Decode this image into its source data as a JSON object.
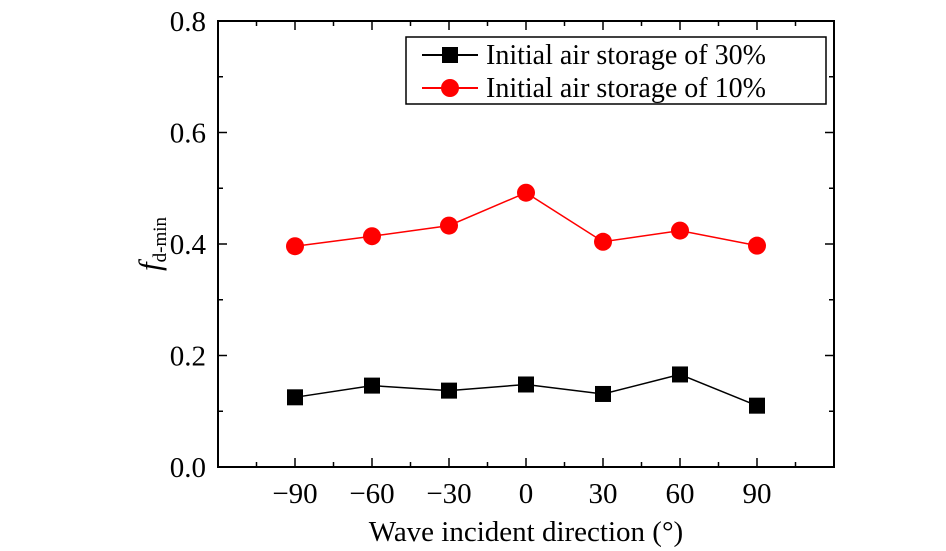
{
  "chart_data": {
    "type": "line",
    "x": [
      -90,
      -60,
      -30,
      0,
      30,
      60,
      90
    ],
    "x_tick_labels": [
      "−90",
      "−60",
      "−30",
      "0",
      "30",
      "60",
      "90"
    ],
    "xlim": [
      -120,
      120
    ],
    "ylim": [
      0.0,
      0.8
    ],
    "y_ticks": [
      0.0,
      0.2,
      0.4,
      0.6,
      0.8
    ],
    "y_tick_labels": [
      "0.0",
      "0.2",
      "0.4",
      "0.6",
      "0.8"
    ],
    "xlabel": "Wave incident direction (°)",
    "ylabel_main": "f",
    "ylabel_sub": "d-min",
    "grid": false,
    "legend_position": "top-right",
    "series": [
      {
        "name": "Initial air storage of 30%",
        "marker": "square",
        "color": "#000000",
        "values": [
          0.125,
          0.146,
          0.137,
          0.148,
          0.131,
          0.166,
          0.11
        ]
      },
      {
        "name": "Initial air storage of 10%",
        "marker": "circle",
        "color": "#ff0000",
        "values": [
          0.396,
          0.414,
          0.433,
          0.492,
          0.404,
          0.424,
          0.397
        ]
      }
    ]
  }
}
